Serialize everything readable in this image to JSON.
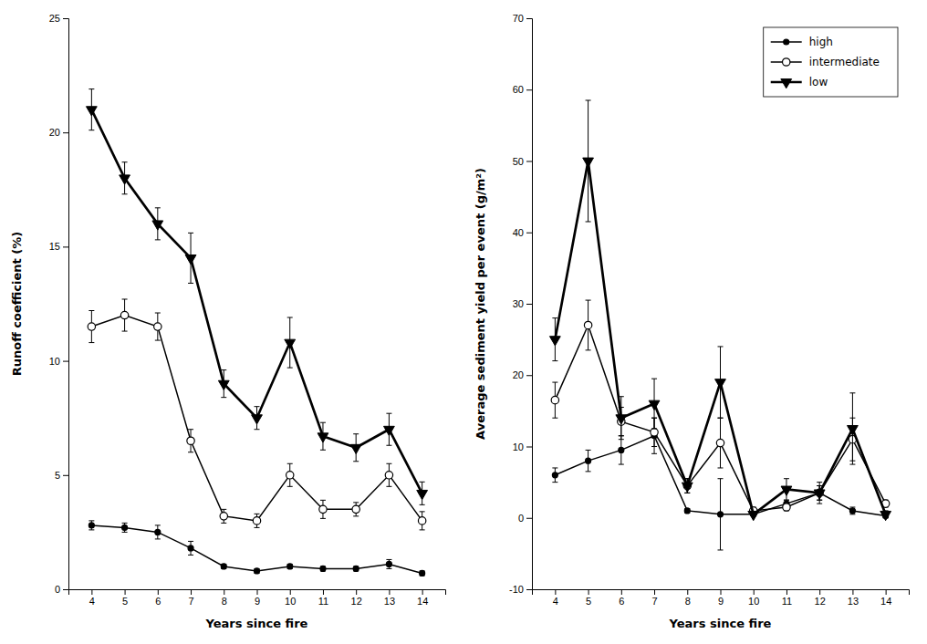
{
  "chart_data": [
    {
      "type": "line",
      "x_label": "Years since fire",
      "y_label": "Runoff coefficient (%)",
      "x": [
        4,
        5,
        6,
        7,
        8,
        9,
        10,
        11,
        12,
        13,
        14
      ],
      "xlim": [
        3.3,
        14.7
      ],
      "xticks": [
        4,
        5,
        6,
        7,
        8,
        9,
        10,
        11,
        12,
        13,
        14
      ],
      "ylim": [
        0,
        25
      ],
      "yticks": [
        0,
        5,
        10,
        15,
        20,
        25
      ],
      "series": [
        {
          "color": "#000000",
          "marker": "circle",
          "line_style": "solid",
          "values": [
            2.8,
            2.7,
            2.5,
            1.8,
            1.0,
            0.8,
            1.0,
            0.9,
            0.9,
            1.1,
            0.7
          ],
          "errors": [
            0.2,
            0.2,
            0.3,
            0.3,
            0.1,
            0.1,
            0.1,
            0.1,
            0.1,
            0.2,
            0.1
          ]
        },
        {
          "color": "#000000",
          "marker": "open-circle",
          "line_style": "solid",
          "values": [
            11.5,
            12.0,
            11.5,
            6.5,
            3.2,
            3.0,
            5.0,
            3.5,
            3.5,
            5.0,
            3.0
          ],
          "errors": [
            0.7,
            0.7,
            0.6,
            0.5,
            0.3,
            0.3,
            0.5,
            0.4,
            0.3,
            0.5,
            0.4
          ]
        },
        {
          "color": "#000000",
          "marker": "triangle-down",
          "line_style": "thick",
          "values": [
            21.0,
            18.0,
            16.0,
            14.5,
            9.0,
            7.5,
            10.8,
            6.7,
            6.2,
            7.0,
            4.2
          ],
          "errors": [
            0.9,
            0.7,
            0.7,
            1.1,
            0.6,
            0.5,
            1.1,
            0.6,
            0.6,
            0.7,
            0.5
          ]
        }
      ]
    },
    {
      "type": "line",
      "x_label": "Years since fire",
      "y_label": "Average sediment yield per event (g/m²)",
      "x": [
        4,
        5,
        6,
        7,
        8,
        9,
        10,
        11,
        12,
        13,
        14
      ],
      "xlim": [
        3.3,
        14.7
      ],
      "xticks": [
        4,
        5,
        6,
        7,
        8,
        9,
        10,
        11,
        12,
        13,
        14
      ],
      "ylim": [
        -10,
        70
      ],
      "yticks": [
        -10,
        0,
        10,
        20,
        30,
        40,
        50,
        60,
        70
      ],
      "legend": "upper right",
      "series": [
        {
          "name": "high",
          "color": "#000000",
          "marker": "circle",
          "line_style": "solid",
          "values": [
            6.0,
            8.0,
            9.5,
            11.5,
            1.0,
            0.5,
            0.5,
            2.0,
            3.5,
            1.0,
            0.3
          ],
          "errors": [
            1.0,
            1.5,
            2.0,
            2.5,
            0.3,
            5.0,
            0.2,
            0.5,
            1.0,
            0.5,
            0.2
          ]
        },
        {
          "name": "intermediate",
          "color": "#000000",
          "marker": "open-circle",
          "line_style": "solid",
          "values": [
            16.5,
            27.0,
            13.5,
            12.0,
            4.5,
            10.5,
            1.0,
            1.5,
            3.5,
            11.0,
            2.0
          ],
          "errors": [
            2.5,
            3.5,
            2.0,
            2.0,
            1.0,
            3.5,
            0.5,
            0.5,
            1.0,
            3.0,
            0.5
          ]
        },
        {
          "name": "low",
          "color": "#000000",
          "marker": "triangle-down",
          "line_style": "thick",
          "values": [
            25.0,
            50.0,
            14.0,
            16.0,
            4.5,
            19.0,
            0.5,
            4.0,
            3.5,
            12.5,
            0.5
          ],
          "errors": [
            3.0,
            8.5,
            3.0,
            3.5,
            1.0,
            5.0,
            0.2,
            1.5,
            1.5,
            5.0,
            0.5
          ]
        }
      ]
    }
  ]
}
